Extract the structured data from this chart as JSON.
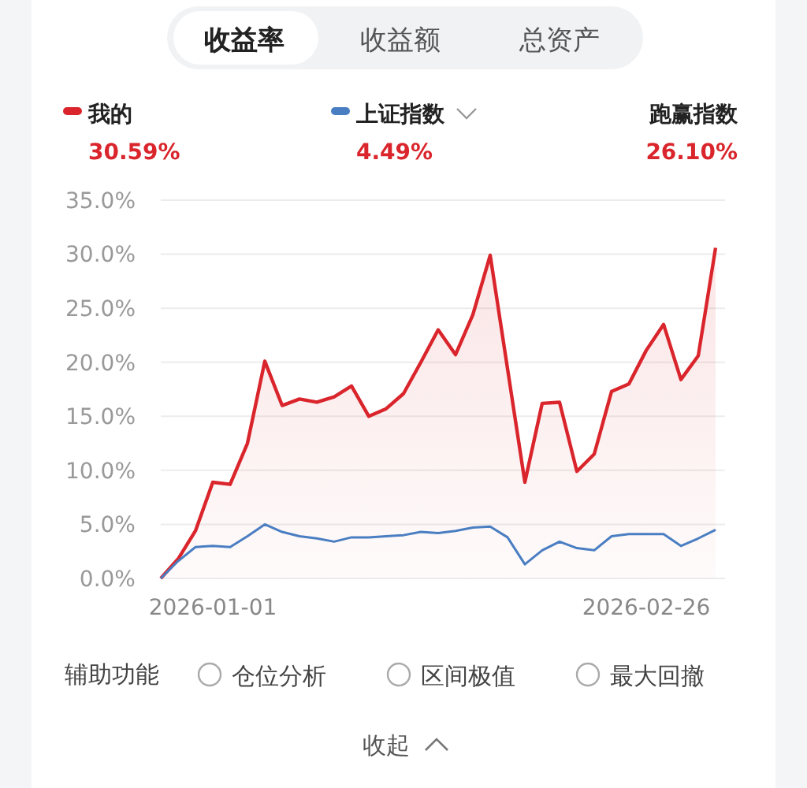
{
  "chart_data": {
    "type": "line",
    "categories": [
      null,
      null,
      null,
      "2026-01-01",
      null,
      null,
      null,
      null,
      null,
      null,
      null,
      null,
      null,
      null,
      null,
      null,
      null,
      null,
      null,
      null,
      null,
      null,
      null,
      null,
      null,
      null,
      null,
      null,
      "2026-02-26",
      null,
      null,
      null,
      null
    ],
    "series": [
      {
        "name": "我的",
        "type": "area",
        "color": "#d9252b",
        "values": [
          0,
          1.8,
          4.4,
          8.9,
          8.7,
          12.5,
          20.1,
          16.0,
          16.6,
          16.3,
          16.8,
          17.8,
          15.0,
          15.7,
          17.1,
          20.0,
          23.0,
          20.7,
          24.4,
          29.9,
          19.4,
          8.9,
          16.2,
          16.3,
          9.9,
          11.5,
          17.3,
          18.0,
          21.1,
          23.5,
          18.4,
          20.6,
          30.59
        ]
      },
      {
        "name": "上证指数",
        "color": "#4a7ec2",
        "values": [
          0,
          1.6,
          2.9,
          3.0,
          2.9,
          3.9,
          5.0,
          4.3,
          3.9,
          3.7,
          3.4,
          3.8,
          3.8,
          3.9,
          4.0,
          4.3,
          4.2,
          4.4,
          4.7,
          4.8,
          3.8,
          1.3,
          2.6,
          3.4,
          2.8,
          2.6,
          3.9,
          4.1,
          4.1,
          4.1,
          3.0,
          3.7,
          4.49
        ]
      }
    ],
    "ylim": [
      0,
      35
    ],
    "yticks": [
      {
        "value": 0,
        "label": "0.0%"
      },
      {
        "value": 5,
        "label": "5.0%"
      },
      {
        "value": 10,
        "label": "10.0%"
      },
      {
        "value": 15,
        "label": "15.0%"
      },
      {
        "value": 20,
        "label": "20.0%"
      },
      {
        "value": 25,
        "label": "25.0%"
      },
      {
        "value": 30,
        "label": "30.0%"
      },
      {
        "value": 35,
        "label": "35.0%"
      }
    ],
    "grid": "y",
    "legend": "top",
    "marker": "none",
    "line_style": "solid",
    "annotations": [
      "收益率",
      "收益额",
      "总资产",
      "30.59%",
      "4.49%",
      "跑赢指数",
      "26.10%",
      "辅助功能",
      "仓位分析",
      "区间极值",
      "最大回撤",
      "收起"
    ]
  }
}
